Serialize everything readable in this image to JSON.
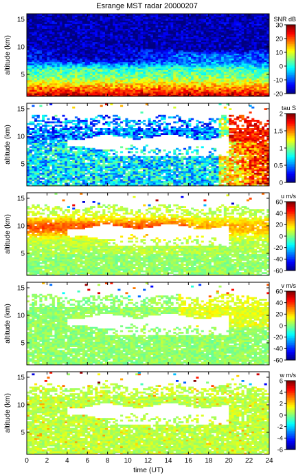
{
  "title": "Esrange MST radar 20000207",
  "xlabel": "time (UT)",
  "chart_data": [
    {
      "type": "heatmap",
      "title": "Esrange MST radar 20000207",
      "ylabel": "altitude (km)",
      "xlim": [
        0,
        24
      ],
      "ylim": [
        1,
        16
      ],
      "xticks": [],
      "yticks": [
        "5",
        "10",
        "15"
      ],
      "colorbar": {
        "label": "SNR dB",
        "range": [
          -20,
          30
        ],
        "ticks": [
          "-20",
          "-10",
          "0",
          "10",
          "20",
          "30"
        ]
      },
      "pattern": "SNR: high (20-30 dB) below 3 km, decreasing with altitude, moderate enhanced layer near 8-11 km, low (-10 to -20 dB) above 12 km"
    },
    {
      "type": "heatmap",
      "ylabel": "altitude (km)",
      "xlim": [
        0,
        24
      ],
      "ylim": [
        1,
        16
      ],
      "xticks": [],
      "yticks": [
        "5",
        "10",
        "15"
      ],
      "colorbar": {
        "label": "tau S",
        "range": [
          0,
          2
        ],
        "ticks": [
          "0",
          "0.5",
          "1",
          "1.5",
          "2"
        ]
      },
      "pattern": "correlation time mostly 0.5-1.5 s between 2 and 12 km, large values (~2 s) after 20 UT, gap near 8-10 km"
    },
    {
      "type": "heatmap",
      "ylabel": "altitude (km)",
      "xlim": [
        0,
        24
      ],
      "ylim": [
        1,
        16
      ],
      "xticks": [],
      "yticks": [
        "5",
        "10",
        "15"
      ],
      "colorbar": {
        "label": "u m/s",
        "range": [
          -60,
          60
        ],
        "ticks": [
          "-60",
          "-40",
          "-20",
          "0",
          "20",
          "40",
          "60"
        ]
      },
      "pattern": "zonal wind maximum ~40-50 m/s near 9-10 km between 4 and 14 UT, weaker 10-20 m/s at lower altitudes"
    },
    {
      "type": "heatmap",
      "ylabel": "altitude (km)",
      "xlim": [
        0,
        24
      ],
      "ylim": [
        1,
        16
      ],
      "xticks": [],
      "yticks": [
        "5",
        "10",
        "15"
      ],
      "colorbar": {
        "label": "v m/s",
        "range": [
          -60,
          60
        ],
        "ticks": [
          "-60",
          "-40",
          "-20",
          "0",
          "20",
          "40",
          "60"
        ]
      },
      "pattern": "meridional wind near 0 to 10 m/s, occasional 20-30 m/s after 16 UT"
    },
    {
      "type": "heatmap",
      "ylabel": "altitude (km)",
      "xlim": [
        0,
        24
      ],
      "ylim": [
        1,
        16
      ],
      "xticks": [
        "0",
        "2",
        "4",
        "6",
        "8",
        "10",
        "12",
        "14",
        "16",
        "18",
        "20",
        "22",
        "24"
      ],
      "yticks": [
        "5",
        "10",
        "15"
      ],
      "colorbar": {
        "label": "w m/s",
        "range": [
          -6,
          6
        ],
        "ticks": [
          "-6",
          "-4",
          "-2",
          "0",
          "2",
          "4",
          "6"
        ]
      },
      "pattern": "vertical wind close to 0 to 1 m/s, small positive fluctuations 2-3 m/s"
    }
  ]
}
